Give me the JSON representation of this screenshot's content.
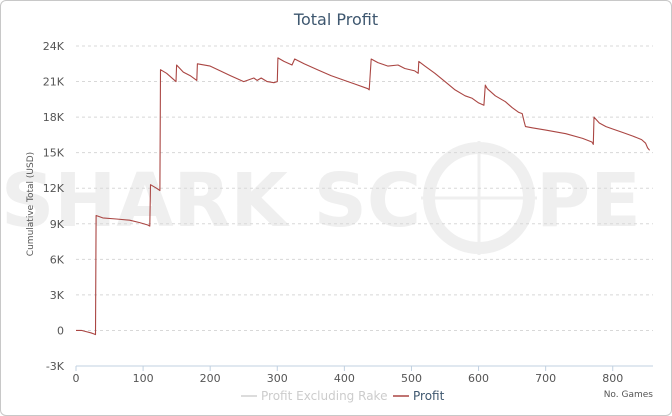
{
  "chart_data": {
    "type": "line",
    "title": "Total Profit",
    "xlabel": "No. Games",
    "ylabel": "Cumulative Total (USD)",
    "xlim": [
      0,
      860
    ],
    "ylim": [
      -3000,
      24000
    ],
    "x_ticks": [
      0,
      100,
      200,
      300,
      400,
      500,
      600,
      700,
      800
    ],
    "y_ticks": [
      -3000,
      0,
      3000,
      6000,
      9000,
      12000,
      15000,
      18000,
      21000,
      24000
    ],
    "y_tick_labels": [
      "-3K",
      "0",
      "3K",
      "6K",
      "9K",
      "12K",
      "15K",
      "18K",
      "21K",
      "24K"
    ],
    "grid": true,
    "legend_position": "bottom-right",
    "watermark": {
      "left": "SHARK SC",
      "right": "PE"
    },
    "series": [
      {
        "name": "Profit Excluding Rake",
        "color": "#d0d0d0",
        "visible": false,
        "x": [],
        "y": []
      },
      {
        "name": "Profit",
        "color": "#aa4643",
        "visible": true,
        "x": [
          0,
          8,
          15,
          22,
          27,
          29,
          30,
          40,
          60,
          80,
          95,
          107,
          110,
          111,
          120,
          125,
          126,
          135,
          145,
          149,
          150,
          160,
          170,
          180,
          181,
          200,
          215,
          230,
          250,
          265,
          270,
          276,
          285,
          295,
          300,
          301,
          310,
          322,
          326,
          340,
          360,
          380,
          400,
          415,
          435,
          437,
          440,
          450,
          465,
          480,
          490,
          505,
          510,
          511,
          520,
          535,
          550,
          565,
          580,
          590,
          600,
          608,
          610,
          613,
          625,
          640,
          650,
          660,
          665,
          668,
          670,
          680,
          700,
          730,
          755,
          769,
          771,
          772,
          780,
          790,
          800,
          815,
          830,
          843,
          849,
          852,
          855
        ],
        "y": [
          0,
          0,
          -100,
          -200,
          -300,
          -350,
          9700,
          9500,
          9400,
          9300,
          9100,
          8900,
          8800,
          12300,
          12000,
          11800,
          22000,
          21700,
          21200,
          21000,
          22400,
          21800,
          21500,
          21100,
          22500,
          22300,
          21900,
          21500,
          21000,
          21300,
          21100,
          21300,
          21000,
          20900,
          21000,
          23000,
          22700,
          22400,
          22900,
          22500,
          22000,
          21500,
          21100,
          20800,
          20400,
          20300,
          22900,
          22600,
          22300,
          22400,
          22100,
          21900,
          21700,
          22700,
          22300,
          21700,
          21000,
          20300,
          19800,
          19600,
          19200,
          19000,
          20700,
          20400,
          19800,
          19300,
          18800,
          18400,
          18300,
          17600,
          17200,
          17100,
          16900,
          16600,
          16200,
          15900,
          15700,
          18000,
          17500,
          17200,
          17000,
          16700,
          16400,
          16100,
          15800,
          15400,
          15200
        ]
      }
    ]
  }
}
